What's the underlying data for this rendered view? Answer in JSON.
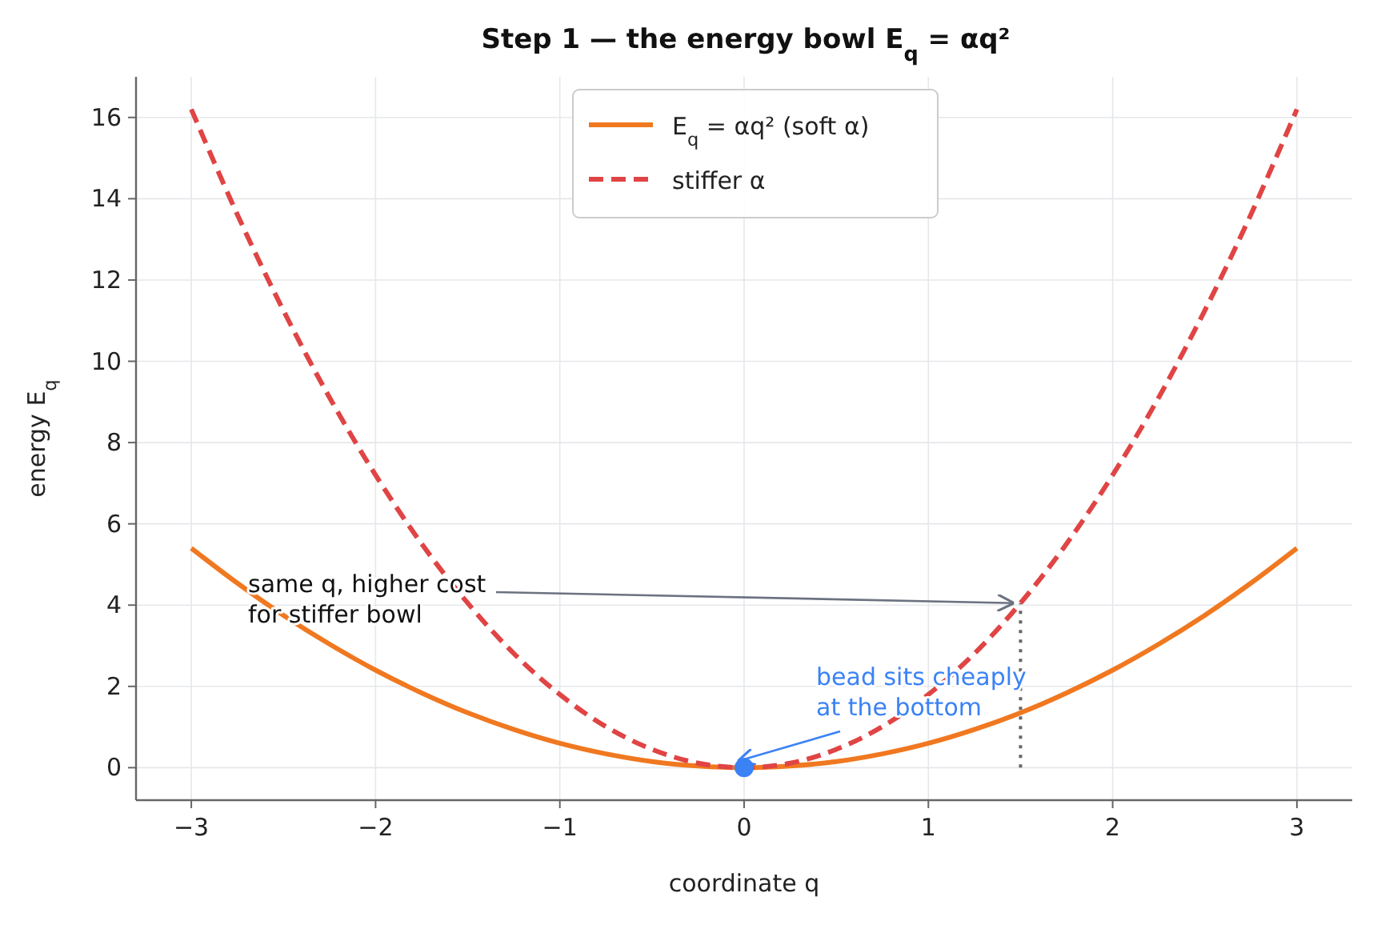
{
  "chart_data": {
    "type": "line",
    "title": "Step 1 — the energy bowl  E$_{q}$ = αq²",
    "xlabel": "coordinate  q",
    "ylabel": "energy  E$_{q}$",
    "x": [
      -3,
      -2.75,
      -2.5,
      -2.25,
      -2,
      -1.75,
      -1.5,
      -1.25,
      -1,
      -0.75,
      -0.5,
      -0.25,
      0,
      0.25,
      0.5,
      0.75,
      1,
      1.25,
      1.5,
      1.75,
      2,
      2.25,
      2.5,
      2.75,
      3
    ],
    "series": [
      {
        "name": "E$_{q}$ = αq² (soft α)",
        "color": "#f07820",
        "line_style": "solid",
        "values": [
          5.4,
          4.54,
          3.75,
          3.04,
          2.4,
          1.84,
          1.35,
          0.94,
          0.6,
          0.34,
          0.15,
          0.04,
          0,
          0.04,
          0.15,
          0.34,
          0.6,
          0.94,
          1.35,
          1.84,
          2.4,
          3.04,
          3.75,
          4.54,
          5.4
        ]
      },
      {
        "name": "stiffer α",
        "color": "#e04444",
        "line_style": "dashed",
        "values": [
          16.2,
          13.61,
          11.25,
          9.11,
          7.2,
          5.51,
          4.05,
          2.81,
          1.8,
          1.01,
          0.45,
          0.11,
          0,
          0.11,
          0.45,
          1.01,
          1.8,
          2.81,
          4.05,
          5.51,
          7.2,
          9.11,
          11.25,
          13.61,
          16.2
        ]
      },
      {
        "type": "scatter",
        "color": "#3b82f6",
        "marker": "circle",
        "values": [
          null,
          null,
          null,
          null,
          null,
          null,
          null,
          null,
          null,
          null,
          null,
          null,
          0,
          null,
          null,
          null,
          null,
          null,
          null,
          null,
          null,
          null,
          null,
          null,
          null
        ]
      }
    ],
    "ref_lines": [
      {
        "axis": "x",
        "value": 1.5,
        "color": "#666666",
        "line_style": "dotted"
      }
    ],
    "annotations": [
      {
        "text": "same q, higher cost\nfor stiffer bowl",
        "x": 1.5,
        "y": 4.05
      },
      {
        "text": "bead sits cheaply\nat the bottom",
        "x": 0,
        "y": 0
      }
    ],
    "xlim": [
      -3.3,
      3.3
    ],
    "ylim": [
      -0.8,
      17
    ],
    "xticks": [
      {
        "value": -3,
        "label": "−3"
      },
      {
        "value": -2,
        "label": "−2"
      },
      {
        "value": -1,
        "label": "−1"
      },
      0,
      1,
      2,
      3
    ],
    "yticks": [
      0,
      2,
      4,
      6,
      8,
      10,
      12,
      14,
      16
    ],
    "grid": true,
    "legend": "top"
  }
}
